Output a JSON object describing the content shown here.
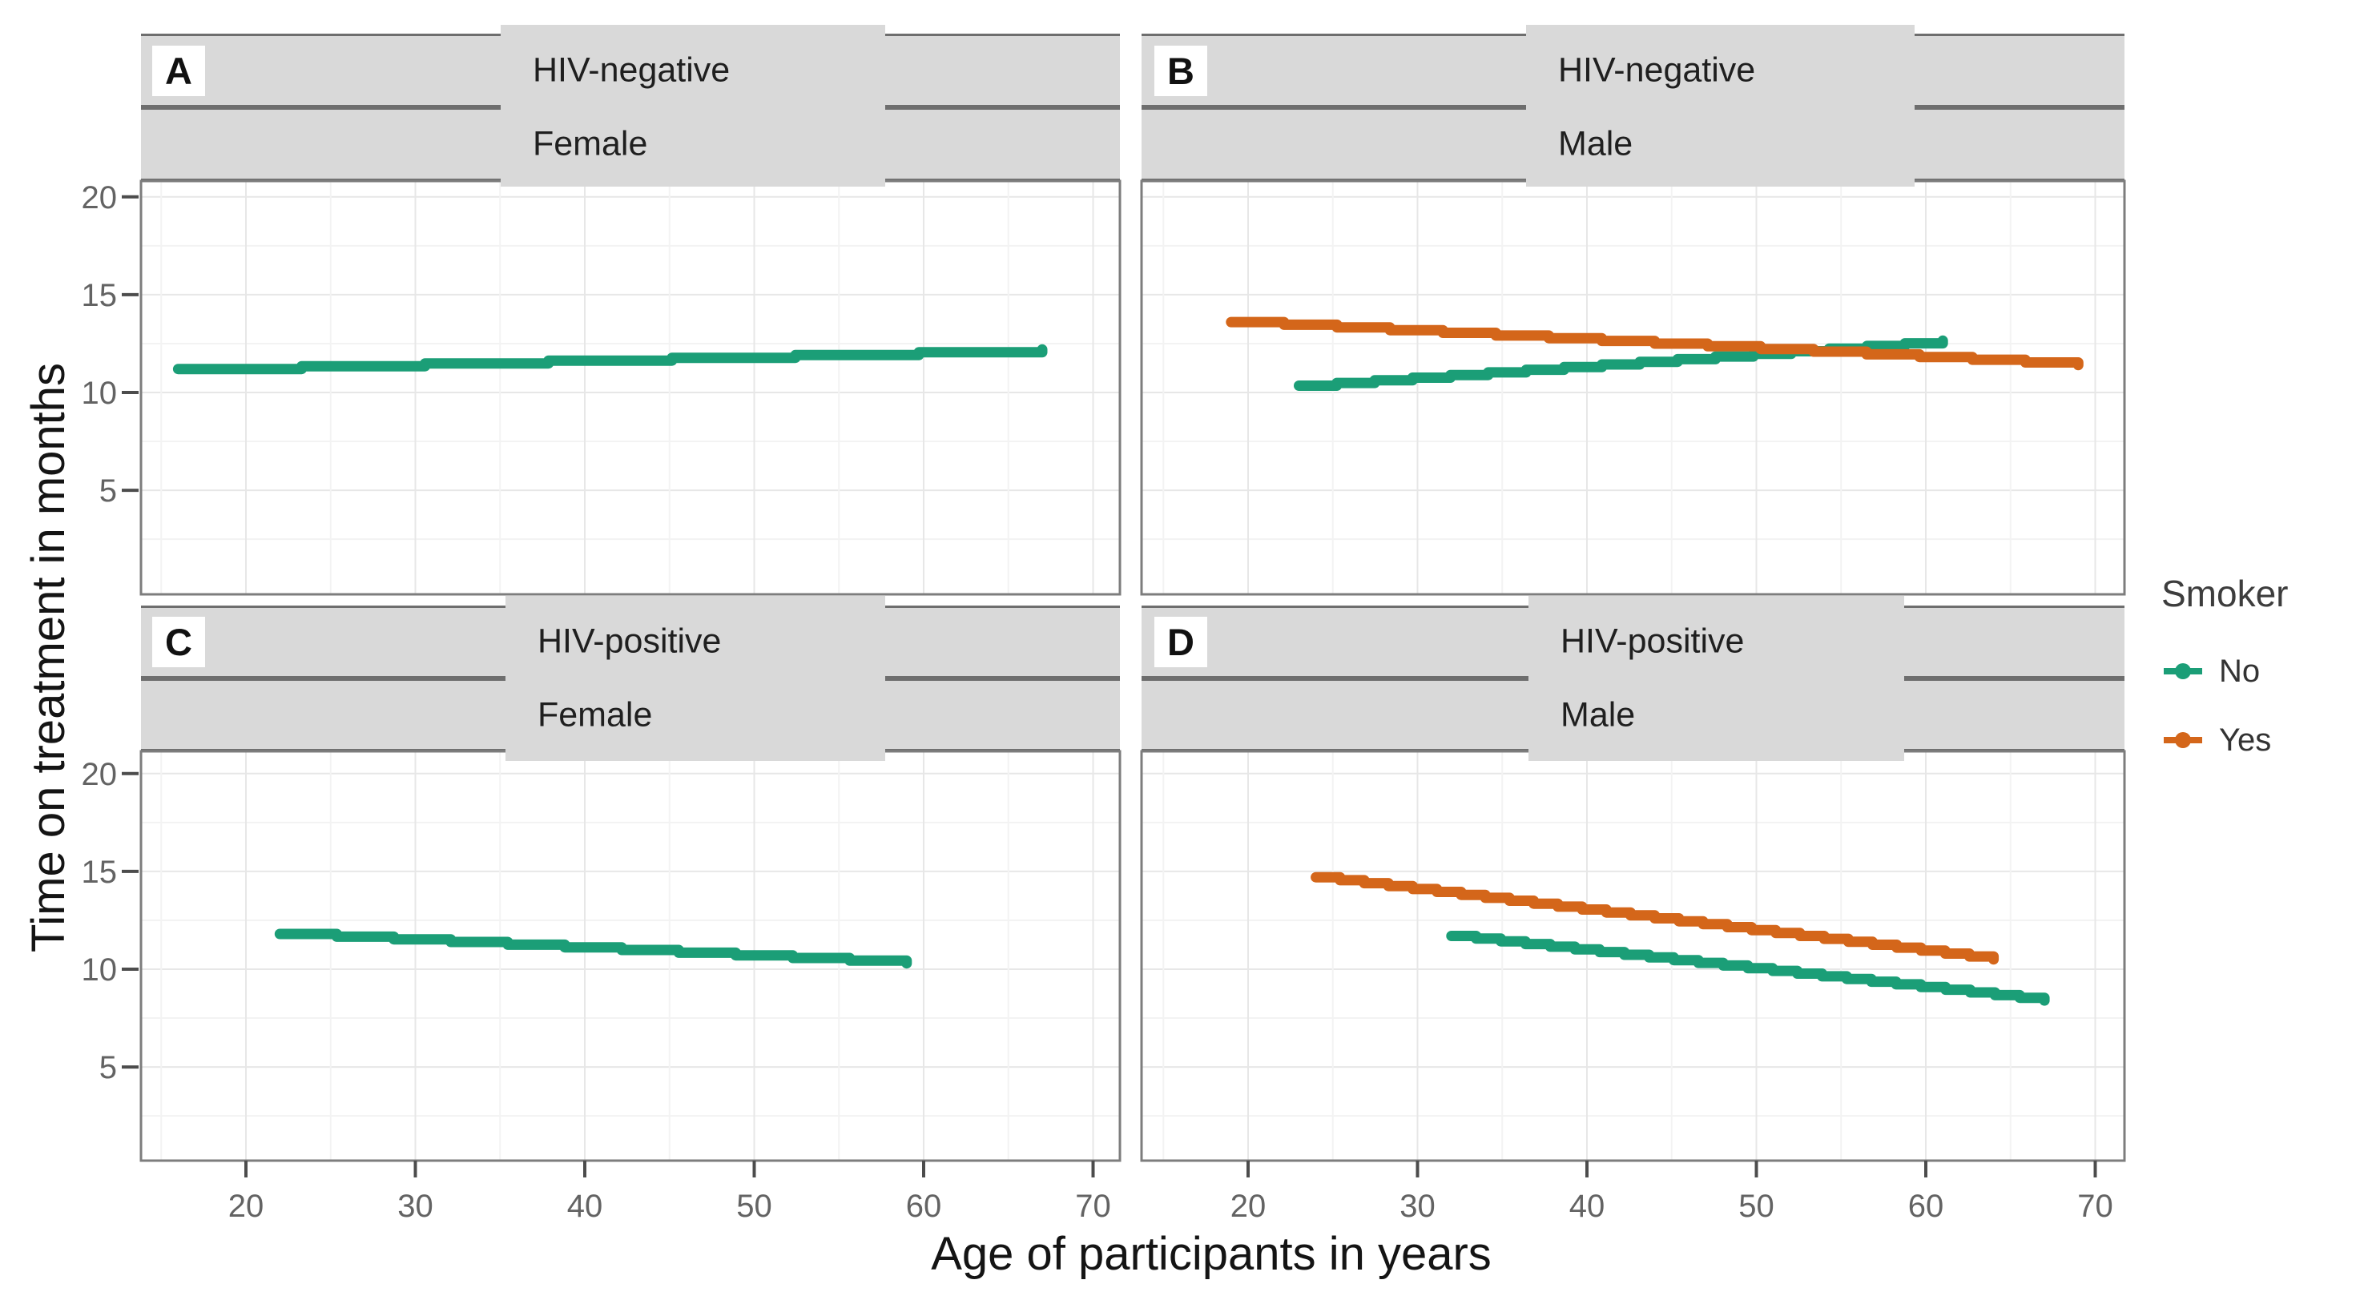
{
  "chart_data": {
    "type": "line",
    "title": "",
    "xlabel": "Age of participants in years",
    "ylabel": "Time on treatment in months",
    "x_ticks": [
      20,
      30,
      40,
      50,
      60,
      70
    ],
    "y_ticks": [
      5,
      10,
      15,
      20
    ],
    "x_range": [
      13.8,
      71.6
    ],
    "y_range": [
      0,
      21
    ],
    "grid": true,
    "facet_rows": [
      "HIV-negative",
      "HIV-positive"
    ],
    "facet_cols": [
      "Female",
      "Male"
    ],
    "legend": {
      "title": "Smoker",
      "position": "right",
      "entries": [
        {
          "label": "No",
          "color": "#1b9e77"
        },
        {
          "label": "Yes",
          "color": "#d4661a"
        }
      ]
    },
    "panels": [
      {
        "id": "A",
        "strip_label_1": "HIV-negative",
        "strip_label_2": "Female",
        "series": [
          {
            "name": "No",
            "color": "#1b9e77",
            "points": [
              [
                16,
                11.2
              ],
              [
                67,
                12.2
              ]
            ]
          }
        ]
      },
      {
        "id": "B",
        "strip_label_1": "HIV-negative",
        "strip_label_2": "Male",
        "series": [
          {
            "name": "No",
            "color": "#1b9e77",
            "points": [
              [
                23,
                10.35
              ],
              [
                61,
                12.65
              ]
            ]
          },
          {
            "name": "Yes",
            "color": "#d4661a",
            "points": [
              [
                19,
                13.6
              ],
              [
                69,
                11.4
              ]
            ]
          }
        ]
      },
      {
        "id": "C",
        "strip_label_1": "HIV-positive",
        "strip_label_2": "Female",
        "series": [
          {
            "name": "No",
            "color": "#1b9e77",
            "points": [
              [
                22,
                11.8
              ],
              [
                59,
                10.3
              ]
            ]
          }
        ]
      },
      {
        "id": "D",
        "strip_label_1": "HIV-positive",
        "strip_label_2": "Male",
        "series": [
          {
            "name": "No",
            "color": "#1b9e77",
            "points": [
              [
                32,
                11.7
              ],
              [
                67,
                8.4
              ]
            ]
          },
          {
            "name": "Yes",
            "color": "#d4661a",
            "points": [
              [
                24,
                14.7
              ],
              [
                64,
                10.5
              ]
            ]
          }
        ]
      }
    ],
    "colors": {
      "strip_fill": "#d9d9d9",
      "strip_border": "#6e6e6e",
      "panel_border": "#7d7d7d",
      "grid_major": "#e7e7e7",
      "grid_minor": "#f3f3f3",
      "tick_mark": "#4c4c4c",
      "tick_label": "#636363",
      "background": "#ffffff"
    }
  }
}
